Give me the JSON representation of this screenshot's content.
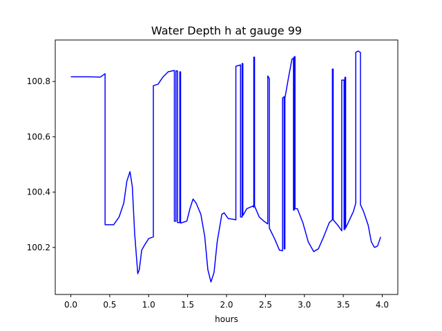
{
  "chart_data": {
    "type": "line",
    "title": "Water Depth h at gauge 99",
    "xlabel": "hours",
    "ylabel": "",
    "xlim": [
      -0.2,
      4.2
    ],
    "ylim": [
      100.03,
      100.95
    ],
    "xticks": [
      0.0,
      0.5,
      1.0,
      1.5,
      2.0,
      2.5,
      3.0,
      3.5,
      4.0
    ],
    "xtick_labels": [
      "0.0",
      "0.5",
      "1.0",
      "1.5",
      "2.0",
      "2.5",
      "3.0",
      "3.5",
      "4.0"
    ],
    "yticks": [
      100.2,
      100.4,
      100.6,
      100.8
    ],
    "ytick_labels": [
      "100.2",
      "100.4",
      "100.6",
      "100.8"
    ],
    "grid": false,
    "series": [
      {
        "color": "#0000ff",
        "points": [
          [
            0.0,
            100.817
          ],
          [
            0.2,
            100.817
          ],
          [
            0.38,
            100.816
          ],
          [
            0.4,
            100.82
          ],
          [
            0.44,
            100.828
          ],
          [
            0.44,
            100.282
          ],
          [
            0.55,
            100.282
          ],
          [
            0.62,
            100.31
          ],
          [
            0.68,
            100.36
          ],
          [
            0.72,
            100.44
          ],
          [
            0.76,
            100.474
          ],
          [
            0.79,
            100.42
          ],
          [
            0.82,
            100.25
          ],
          [
            0.86,
            100.105
          ],
          [
            0.88,
            100.12
          ],
          [
            0.91,
            100.19
          ],
          [
            0.95,
            100.21
          ],
          [
            1.0,
            100.232
          ],
          [
            1.06,
            100.238
          ],
          [
            1.06,
            100.785
          ],
          [
            1.12,
            100.79
          ],
          [
            1.18,
            100.815
          ],
          [
            1.25,
            100.835
          ],
          [
            1.33,
            100.84
          ],
          [
            1.33,
            100.295
          ],
          [
            1.35,
            100.295
          ],
          [
            1.35,
            100.838
          ],
          [
            1.37,
            100.838
          ],
          [
            1.37,
            100.29
          ],
          [
            1.4,
            100.29
          ],
          [
            1.4,
            100.835
          ],
          [
            1.41,
            100.835
          ],
          [
            1.41,
            100.288
          ],
          [
            1.49,
            100.295
          ],
          [
            1.53,
            100.34
          ],
          [
            1.57,
            100.375
          ],
          [
            1.61,
            100.36
          ],
          [
            1.67,
            100.32
          ],
          [
            1.72,
            100.24
          ],
          [
            1.76,
            100.12
          ],
          [
            1.8,
            100.075
          ],
          [
            1.84,
            100.11
          ],
          [
            1.88,
            100.22
          ],
          [
            1.94,
            100.32
          ],
          [
            1.97,
            100.325
          ],
          [
            2.02,
            100.305
          ],
          [
            2.12,
            100.3
          ],
          [
            2.12,
            100.855
          ],
          [
            2.18,
            100.86
          ],
          [
            2.18,
            100.31
          ],
          [
            2.2,
            100.31
          ],
          [
            2.2,
            100.865
          ],
          [
            2.21,
            100.865
          ],
          [
            2.21,
            100.315
          ],
          [
            2.26,
            100.34
          ],
          [
            2.34,
            100.35
          ],
          [
            2.35,
            100.345
          ],
          [
            2.35,
            100.888
          ],
          [
            2.36,
            100.888
          ],
          [
            2.36,
            100.35
          ],
          [
            2.42,
            100.31
          ],
          [
            2.48,
            100.295
          ],
          [
            2.53,
            100.285
          ],
          [
            2.53,
            100.82
          ],
          [
            2.55,
            100.81
          ],
          [
            2.55,
            100.27
          ],
          [
            2.62,
            100.23
          ],
          [
            2.68,
            100.19
          ],
          [
            2.72,
            100.188
          ],
          [
            2.72,
            100.74
          ],
          [
            2.74,
            100.745
          ],
          [
            2.74,
            100.195
          ],
          [
            2.75,
            100.195
          ],
          [
            2.75,
            100.74
          ],
          [
            2.8,
            100.82
          ],
          [
            2.84,
            100.88
          ],
          [
            2.86,
            100.885
          ],
          [
            2.86,
            100.335
          ],
          [
            2.87,
            100.335
          ],
          [
            2.87,
            100.89
          ],
          [
            2.88,
            100.89
          ],
          [
            2.88,
            100.34
          ],
          [
            2.91,
            100.34
          ],
          [
            2.98,
            100.29
          ],
          [
            3.05,
            100.22
          ],
          [
            3.12,
            100.185
          ],
          [
            3.18,
            100.195
          ],
          [
            3.25,
            100.24
          ],
          [
            3.32,
            100.29
          ],
          [
            3.36,
            100.3
          ],
          [
            3.36,
            100.845
          ],
          [
            3.37,
            100.845
          ],
          [
            3.37,
            100.3
          ],
          [
            3.43,
            100.28
          ],
          [
            3.48,
            100.26
          ],
          [
            3.48,
            100.805
          ],
          [
            3.51,
            100.805
          ],
          [
            3.51,
            100.265
          ],
          [
            3.52,
            100.265
          ],
          [
            3.52,
            100.815
          ],
          [
            3.53,
            100.815
          ],
          [
            3.53,
            100.27
          ],
          [
            3.58,
            100.3
          ],
          [
            3.63,
            100.33
          ],
          [
            3.66,
            100.36
          ],
          [
            3.66,
            100.905
          ],
          [
            3.69,
            100.91
          ],
          [
            3.72,
            100.905
          ],
          [
            3.72,
            100.355
          ],
          [
            3.76,
            100.33
          ],
          [
            3.82,
            100.28
          ],
          [
            3.86,
            100.22
          ],
          [
            3.9,
            100.2
          ],
          [
            3.94,
            100.205
          ],
          [
            3.98,
            100.238
          ]
        ]
      }
    ]
  }
}
